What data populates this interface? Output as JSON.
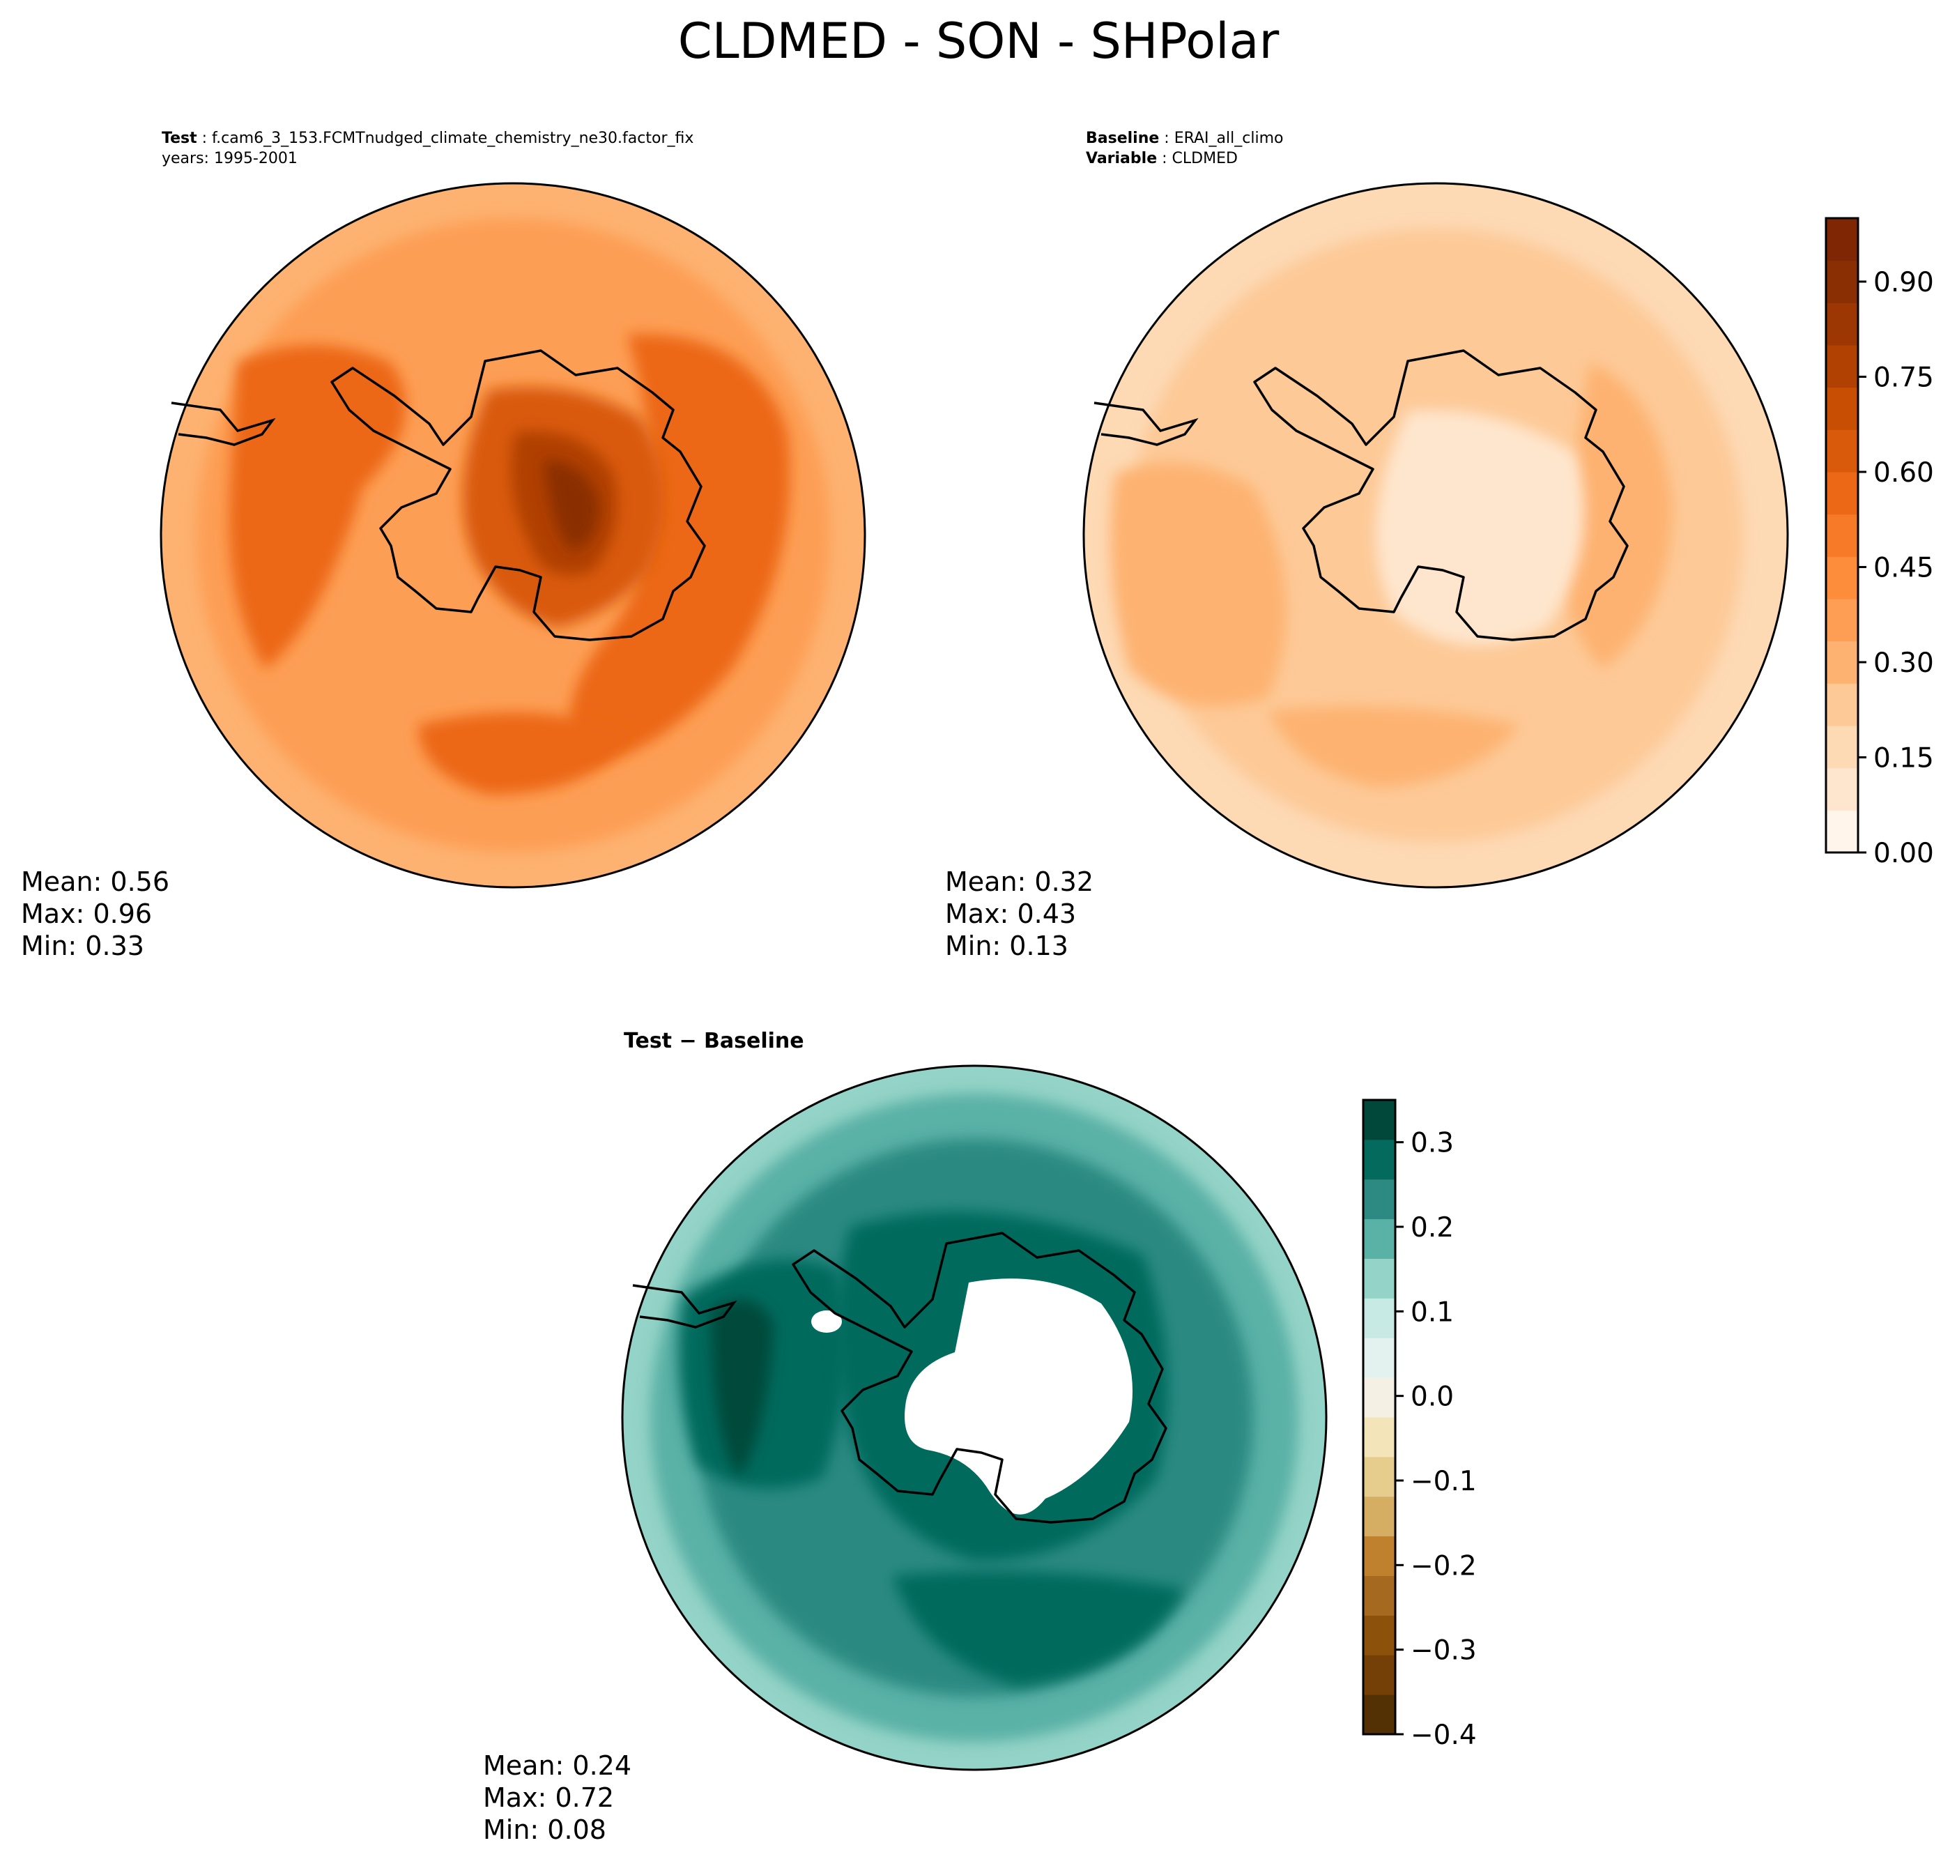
{
  "title": "CLDMED - SON - SHPolar",
  "panels": {
    "test": {
      "label_key": "Test",
      "label_value": "f.cam6_3_153.FCMTnudged_climate_chemistry_ne30.factor_fix",
      "years_line": "years: 1995-2001",
      "stats": {
        "mean": "Mean:  0.56",
        "max": "Max:  0.96",
        "min": "Min:  0.33"
      }
    },
    "baseline": {
      "label_key": "Baseline",
      "label_value": "ERAI_all_climo",
      "variable_key": "Variable",
      "variable_value": "CLDMED",
      "stats": {
        "mean": "Mean:  0.32",
        "max": "Max:  0.43",
        "min": "Min:  0.13"
      }
    },
    "diff": {
      "title": "Test − Baseline",
      "stats": {
        "mean": "Mean:  0.24",
        "max": "Max:  0.72",
        "min": "Min:  0.08"
      }
    }
  },
  "colorbars": {
    "main": {
      "ticks": [
        "0.00",
        "0.15",
        "0.30",
        "0.45",
        "0.60",
        "0.75",
        "0.90"
      ],
      "range": [
        0,
        1.0
      ],
      "colors": [
        "#fff5eb",
        "#fee6ce",
        "#fdd9b4",
        "#fdc997",
        "#fdb271",
        "#fd9e54",
        "#fd8c3b",
        "#f67a27",
        "#ec6716",
        "#d95a0a",
        "#c84e03",
        "#b04103",
        "#9c3703",
        "#8a2f04",
        "#7f2704"
      ]
    },
    "diff": {
      "ticks": [
        "0.3",
        "0.2",
        "0.1",
        "0.0",
        "−0.1",
        "−0.2",
        "−0.3",
        "−0.4"
      ],
      "range": [
        -0.4,
        0.35
      ],
      "colors": [
        "#543005",
        "#744008",
        "#8c510a",
        "#a56a1f",
        "#bf812d",
        "#d5ae63",
        "#e6cd8e",
        "#f3e4b9",
        "#f5f0e4",
        "#e3f2ee",
        "#c7eae4",
        "#94d3c7",
        "#5ab1a6",
        "#2c8a82",
        "#036a5d",
        "#01483b"
      ]
    }
  },
  "fields": {
    "test_palette": [
      "#fdb271",
      "#fd9e54",
      "#f67a27",
      "#ec6716",
      "#d95a0a",
      "#b04103",
      "#8a2f04"
    ],
    "base_palette": [
      "#fee6ce",
      "#fdd9b4",
      "#fdc997",
      "#fdb271",
      "#fd9e54"
    ],
    "diff_palette": [
      "#c7eae4",
      "#94d3c7",
      "#5ab1a6",
      "#2c8a82",
      "#036a5d",
      "#01483b"
    ]
  }
}
